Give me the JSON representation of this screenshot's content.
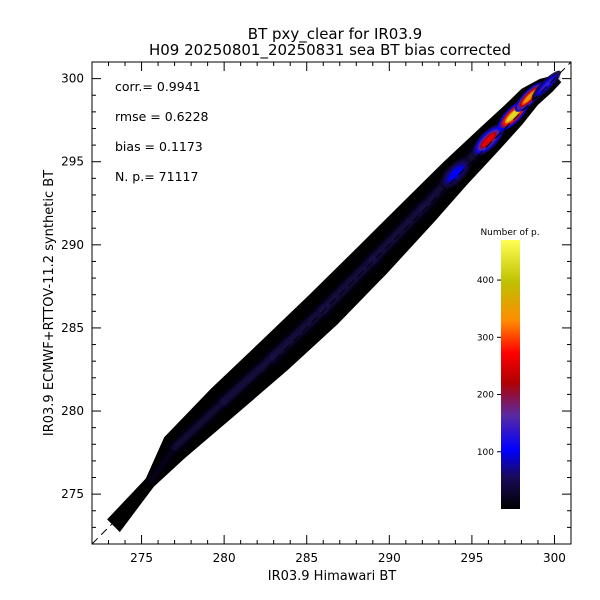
{
  "chart_data": {
    "type": "heatmap",
    "title": "BT pxy_clear for IR03.9",
    "subtitle": "H09 20250801_20250831 sea BT bias corrected",
    "xlabel": "IR03.9 Himawari BT",
    "ylabel": "IR03.9 ECMWF+RTTOV-11.2 synthetic BT",
    "xlim": [
      272,
      301
    ],
    "ylim": [
      272,
      301
    ],
    "x_ticks": [
      "275",
      "280",
      "285",
      "290",
      "295",
      "300"
    ],
    "y_ticks": [
      "275",
      "280",
      "285",
      "290",
      "295",
      "300"
    ],
    "identity_line": true,
    "grid": false,
    "stats": [
      {
        "label": "corr.=",
        "value": "0.9941"
      },
      {
        "label": "rmse =",
        "value": "0.6228"
      },
      {
        "label": "bias =",
        "value": "0.1173"
      },
      {
        "label": "N. p.=",
        "value": "71117"
      }
    ],
    "colorbar": {
      "title": "Number of p.",
      "range": [
        0,
        470
      ],
      "ticks": [
        "100",
        "200",
        "300",
        "400"
      ],
      "placement": "right"
    },
    "density_ridge": [
      {
        "x": 273.3,
        "y": 273.1,
        "half_width": 0.55,
        "peak": 0.02
      },
      {
        "x": 275.5,
        "y": 275.7,
        "half_width": 0.35,
        "peak": 0.02
      },
      {
        "x": 277,
        "y": 277.8,
        "half_width": 0.9,
        "peak": 0.04
      },
      {
        "x": 280,
        "y": 280.6,
        "half_width": 1.1,
        "peak": 0.05
      },
      {
        "x": 283,
        "y": 283.3,
        "half_width": 1.2,
        "peak": 0.06
      },
      {
        "x": 286,
        "y": 286.1,
        "half_width": 1.25,
        "peak": 0.08
      },
      {
        "x": 289,
        "y": 289.1,
        "half_width": 1.2,
        "peak": 0.1
      },
      {
        "x": 292,
        "y": 292.2,
        "half_width": 1.1,
        "peak": 0.14
      },
      {
        "x": 294,
        "y": 294.3,
        "half_width": 1.0,
        "peak": 0.22
      },
      {
        "x": 296,
        "y": 296.3,
        "half_width": 0.9,
        "peak": 0.55
      },
      {
        "x": 297.5,
        "y": 297.8,
        "half_width": 0.8,
        "peak": 0.92
      },
      {
        "x": 298.5,
        "y": 298.9,
        "half_width": 0.7,
        "peak": 0.75
      },
      {
        "x": 299.5,
        "y": 299.6,
        "half_width": 0.55,
        "peak": 0.3
      },
      {
        "x": 300.2,
        "y": 300.0,
        "half_width": 0.3,
        "peak": 0.05
      }
    ],
    "colors": [
      "#000000",
      "#1a0a5a",
      "#0000ff",
      "#5a2aa0",
      "#b00000",
      "#ff0000",
      "#ff8c00",
      "#bfbf00",
      "#ffff55"
    ]
  }
}
